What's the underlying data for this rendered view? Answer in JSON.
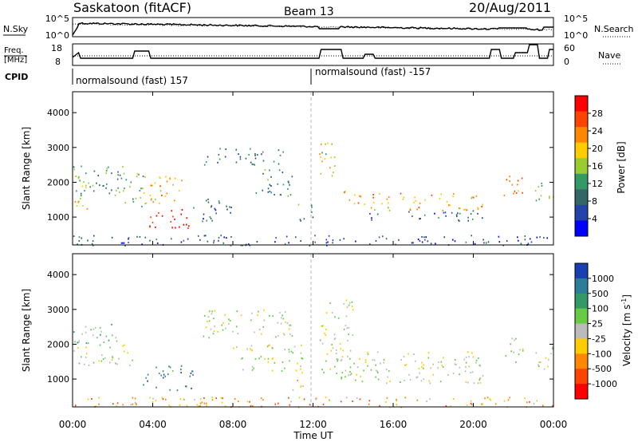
{
  "header": {
    "station": "Saskatoon (fitACF)",
    "beam": "Beam 13",
    "date": "20/Aug/2011"
  },
  "noise_panel": {
    "left_label": "N.Sky",
    "right_label": "N.Search",
    "left_ticks": [
      "10^5",
      "10^0"
    ],
    "right_ticks": [
      "10^5",
      "10^0"
    ]
  },
  "freq_panel": {
    "left_label_line1": "Freq.",
    "left_label_line2": "[MHz]",
    "right_label": "Nave",
    "left_ticks": [
      "18",
      "8"
    ],
    "right_ticks": [
      "60",
      "0"
    ]
  },
  "cpid": {
    "label": "CPID",
    "segments": [
      {
        "text": "normalsound (fast) 157",
        "start_hour": 0
      },
      {
        "text": "normalsound (fast) -157",
        "start_hour": 12
      }
    ]
  },
  "power_colorbar": {
    "label": "Power [dB]",
    "ticks": [
      "28",
      "24",
      "20",
      "16",
      "12",
      "8",
      "4"
    ],
    "colors": [
      "#ff0000",
      "#ff4400",
      "#ff8800",
      "#ffcc00",
      "#99cc33",
      "#339966",
      "#336666",
      "#2244aa",
      "#0000ff"
    ]
  },
  "velocity_colorbar": {
    "label_main": "Velocity [m s",
    "label_sup": "-1",
    "label_end": "]",
    "ticks": [
      "1000",
      "500",
      "100",
      "25",
      "-25",
      "-100",
      "-500",
      "-1000"
    ],
    "colors": [
      "#1a3fb0",
      "#2d7c9a",
      "#339966",
      "#66cc44",
      "#bbbbbb",
      "#ffcc00",
      "#ff8800",
      "#ff4400",
      "#ff0000"
    ]
  },
  "chart_data": [
    {
      "type": "heatmap",
      "title": "Power",
      "ylabel": "Slant Range [km]",
      "yticks": [
        "4000",
        "3000",
        "2000",
        "1000"
      ],
      "ylim": [
        200,
        4600
      ],
      "xlim": [
        0,
        24
      ],
      "regions": [
        {
          "hours": [
            0.0,
            0.8
          ],
          "range": [
            1200,
            2000
          ],
          "level": 0.6
        },
        {
          "hours": [
            0.0,
            2.5
          ],
          "range": [
            1500,
            2500
          ],
          "level": 0.35
        },
        {
          "hours": [
            2.5,
            3.8
          ],
          "range": [
            1300,
            2300
          ],
          "level": 0.45
        },
        {
          "hours": [
            3.8,
            6.0
          ],
          "range": [
            700,
            1300
          ],
          "level": 1.0
        },
        {
          "hours": [
            3.5,
            5.5
          ],
          "range": [
            1400,
            2200
          ],
          "level": 0.7
        },
        {
          "hours": [
            6.5,
            10.5
          ],
          "range": [
            2500,
            3000
          ],
          "level": 0.25
        },
        {
          "hours": [
            6.0,
            8.0
          ],
          "range": [
            900,
            1600
          ],
          "level": 0.2
        },
        {
          "hours": [
            9.0,
            11.0
          ],
          "range": [
            1600,
            2400
          ],
          "level": 0.3
        },
        {
          "hours": [
            11.0,
            12.0
          ],
          "range": [
            900,
            1400
          ],
          "level": 0.3
        },
        {
          "hours": [
            12.3,
            13.3
          ],
          "range": [
            2200,
            3200
          ],
          "level": 0.6
        },
        {
          "hours": [
            13.5,
            14.6
          ],
          "range": [
            1300,
            1800
          ],
          "level": 0.7
        },
        {
          "hours": [
            14.8,
            20.5
          ],
          "range": [
            1200,
            1700
          ],
          "level": 0.7
        },
        {
          "hours": [
            14.8,
            20.5
          ],
          "range": [
            900,
            1200
          ],
          "level": 0.2
        },
        {
          "hours": [
            21.5,
            22.5
          ],
          "range": [
            1500,
            2300
          ],
          "level": 0.8
        },
        {
          "hours": [
            23.0,
            24.0
          ],
          "range": [
            1400,
            2000
          ],
          "level": 0.5
        },
        {
          "hours": [
            0.0,
            24.0
          ],
          "range": [
            200,
            500
          ],
          "level": 0.15
        }
      ]
    },
    {
      "type": "heatmap",
      "title": "Velocity",
      "ylabel": "Slant Range [km]",
      "yticks": [
        "4000",
        "3000",
        "2000",
        "1000"
      ],
      "ylim": [
        200,
        4600
      ],
      "xlim": [
        0,
        24
      ],
      "xticks": [
        "00:00",
        "04:00",
        "08:00",
        "12:00",
        "16:00",
        "20:00",
        "00:00"
      ],
      "xlabel": "Time UT",
      "regions": [
        {
          "hours": [
            0.0,
            3.0
          ],
          "range": [
            1400,
            2000
          ],
          "level": 0.5
        },
        {
          "hours": [
            0.0,
            2.5
          ],
          "range": [
            2000,
            2600
          ],
          "level": 0.6
        },
        {
          "hours": [
            3.5,
            6.0
          ],
          "range": [
            700,
            1400
          ],
          "level": 0.85
        },
        {
          "hours": [
            6.5,
            11.0
          ],
          "range": [
            2200,
            3000
          ],
          "level": 0.5
        },
        {
          "hours": [
            8.0,
            11.5
          ],
          "range": [
            1200,
            2000
          ],
          "level": 0.5
        },
        {
          "hours": [
            10.5,
            11.5
          ],
          "range": [
            700,
            1000
          ],
          "level": 0.35
        },
        {
          "hours": [
            12.3,
            14.0
          ],
          "range": [
            1000,
            3300
          ],
          "level": 0.5
        },
        {
          "hours": [
            14.0,
            20.5
          ],
          "range": [
            900,
            1800
          ],
          "level": 0.5
        },
        {
          "hours": [
            21.5,
            22.5
          ],
          "range": [
            1500,
            2200
          ],
          "level": 0.5
        },
        {
          "hours": [
            23.0,
            24.0
          ],
          "range": [
            1300,
            2000
          ],
          "level": 0.5
        },
        {
          "hours": [
            0.0,
            24.0
          ],
          "range": [
            200,
            500
          ],
          "level": 0.3
        }
      ]
    }
  ]
}
